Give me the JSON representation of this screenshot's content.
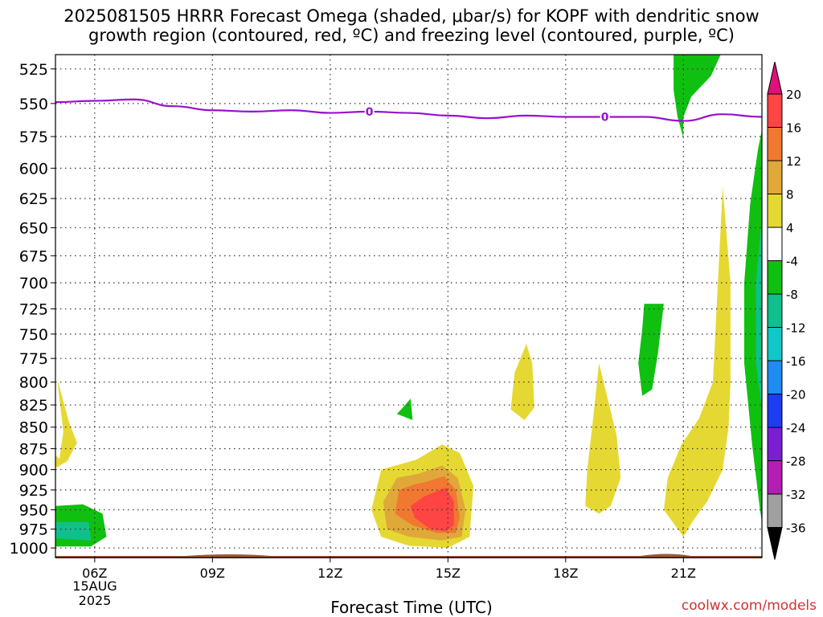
{
  "title_line1": "2025081505 HRRR Forecast Omega (shaded, μbar/s) for KOPF with dendritic snow",
  "title_line2": "growth region (contoured, red, ºC) and freezing level (contoured, purple, ºC)",
  "credit": "coolwx.com/models",
  "chart_data": {
    "type": "contour",
    "xlabel": "Forecast Time (UTC)",
    "x_ticks": [
      "06Z",
      "09Z",
      "12Z",
      "15Z",
      "18Z",
      "21Z"
    ],
    "x_hours": [
      6,
      9,
      12,
      15,
      18,
      21
    ],
    "xlim_hours": [
      5,
      23
    ],
    "date_label": [
      "15AUG",
      "2025"
    ],
    "ylabel": "",
    "y_ticks": [
      525,
      550,
      575,
      600,
      625,
      650,
      675,
      700,
      725,
      750,
      775,
      800,
      825,
      850,
      875,
      900,
      925,
      950,
      975,
      1000
    ],
    "ylim_hPa": [
      515,
      1013
    ],
    "y_scale": "log-pressure",
    "grid": true,
    "colorbar": {
      "position": "right",
      "labels": [
        "20",
        "16",
        "12",
        "8",
        "4",
        "-4",
        "-8",
        "-12",
        "-16",
        "-20",
        "-24",
        "-28",
        "-32",
        "-36"
      ],
      "colors": [
        "#ff4444",
        "#f07830",
        "#e0a838",
        "#e6d832",
        "#ffffff",
        "#10c010",
        "#10c08c",
        "#10c8c8",
        "#1e8cf0",
        "#1e3cf0",
        "#7a1ed2",
        "#b41eb4",
        "#a0a0a0"
      ],
      "top_color": "#e0107a",
      "bottom_color": "#000000"
    },
    "freezing_level": {
      "label": "0",
      "color": "#9a10d0",
      "points": [
        [
          5,
          549
        ],
        [
          6,
          548
        ],
        [
          7,
          547
        ],
        [
          8,
          552
        ],
        [
          9,
          555
        ],
        [
          10,
          556
        ],
        [
          11,
          555
        ],
        [
          12,
          557
        ],
        [
          13,
          556
        ],
        [
          14,
          557
        ],
        [
          15,
          559
        ],
        [
          16,
          561
        ],
        [
          17,
          559
        ],
        [
          18,
          560
        ],
        [
          19,
          560
        ],
        [
          20,
          560
        ],
        [
          21,
          563
        ],
        [
          22,
          558
        ],
        [
          23,
          560
        ]
      ]
    },
    "omega_regions": [
      {
        "value": 4,
        "color": "#e6d832",
        "points": [
          [
            5.1,
            887
          ],
          [
            5.2,
            855
          ],
          [
            5.1,
            818
          ],
          [
            5.05,
            797
          ],
          [
            5.35,
            845
          ],
          [
            5.55,
            868
          ],
          [
            5.3,
            890
          ],
          [
            5.0,
            898
          ],
          [
            4.95,
            880
          ]
        ]
      },
      {
        "value": -4,
        "color": "#10c010",
        "points": [
          [
            5.0,
            945
          ],
          [
            5.7,
            943
          ],
          [
            6.2,
            955
          ],
          [
            6.3,
            985
          ],
          [
            5.9,
            998
          ],
          [
            4.9,
            998
          ],
          [
            4.75,
            970
          ],
          [
            4.85,
            950
          ]
        ]
      },
      {
        "value": -8,
        "color": "#10c08c",
        "points": [
          [
            5.0,
            966
          ],
          [
            5.85,
            966
          ],
          [
            5.9,
            990
          ],
          [
            5.0,
            987
          ]
        ]
      },
      {
        "value": 4,
        "color": "#e6d832",
        "points": [
          [
            14.2,
            888
          ],
          [
            14.85,
            870
          ],
          [
            15.3,
            880
          ],
          [
            15.65,
            920
          ],
          [
            15.55,
            985
          ],
          [
            15.0,
            1000
          ],
          [
            14.0,
            997
          ],
          [
            13.3,
            985
          ],
          [
            13.05,
            950
          ],
          [
            13.3,
            900
          ]
        ]
      },
      {
        "value": 8,
        "color": "#e0a838",
        "points": [
          [
            14.25,
            905
          ],
          [
            14.85,
            895
          ],
          [
            15.25,
            910
          ],
          [
            15.45,
            950
          ],
          [
            15.35,
            985
          ],
          [
            14.85,
            990
          ],
          [
            14.0,
            985
          ],
          [
            13.45,
            975
          ],
          [
            13.35,
            940
          ],
          [
            13.7,
            910
          ]
        ]
      },
      {
        "value": 12,
        "color": "#f07830",
        "points": [
          [
            14.45,
            915
          ],
          [
            14.9,
            908
          ],
          [
            15.2,
            925
          ],
          [
            15.3,
            960
          ],
          [
            15.2,
            980
          ],
          [
            14.7,
            980
          ],
          [
            14.1,
            970
          ],
          [
            13.65,
            955
          ],
          [
            13.75,
            925
          ],
          [
            14.15,
            918
          ]
        ]
      },
      {
        "value": 16,
        "color": "#ff4444",
        "points": [
          [
            14.65,
            928
          ],
          [
            14.95,
            922
          ],
          [
            15.15,
            940
          ],
          [
            15.15,
            970
          ],
          [
            14.95,
            978
          ],
          [
            14.55,
            975
          ],
          [
            14.15,
            960
          ],
          [
            14.05,
            945
          ],
          [
            14.4,
            933
          ]
        ]
      },
      {
        "value": -4,
        "color": "#10c010",
        "points": [
          [
            13.85,
            828
          ],
          [
            14.05,
            818
          ],
          [
            14.1,
            842
          ],
          [
            13.7,
            835
          ]
        ]
      },
      {
        "value": 4,
        "color": "#e6d832",
        "points": [
          [
            17.0,
            760
          ],
          [
            17.15,
            780
          ],
          [
            17.2,
            828
          ],
          [
            16.95,
            842
          ],
          [
            16.6,
            830
          ],
          [
            16.7,
            790
          ]
        ]
      },
      {
        "value": 4,
        "color": "#e6d832",
        "points": [
          [
            18.85,
            780
          ],
          [
            19.3,
            860
          ],
          [
            19.4,
            910
          ],
          [
            19.15,
            945
          ],
          [
            18.85,
            955
          ],
          [
            18.5,
            945
          ],
          [
            18.55,
            900
          ],
          [
            18.7,
            840
          ]
        ]
      },
      {
        "value": -4,
        "color": "#10c010",
        "points": [
          [
            20.0,
            720
          ],
          [
            20.5,
            720
          ],
          [
            20.35,
            770
          ],
          [
            20.2,
            808
          ],
          [
            19.95,
            815
          ],
          [
            19.85,
            780
          ],
          [
            19.95,
            745
          ]
        ]
      },
      {
        "value": 4,
        "color": "#e6d832",
        "points": [
          [
            22.0,
            615
          ],
          [
            22.2,
            700
          ],
          [
            22.2,
            800
          ],
          [
            22.15,
            850
          ],
          [
            22.0,
            900
          ],
          [
            21.6,
            940
          ],
          [
            21.3,
            960
          ],
          [
            21.0,
            985
          ],
          [
            20.5,
            950
          ],
          [
            20.6,
            910
          ],
          [
            20.95,
            870
          ],
          [
            21.4,
            840
          ],
          [
            21.75,
            800
          ]
        ]
      },
      {
        "value": -4,
        "color": "#10c010",
        "points": [
          [
            20.75,
            515
          ],
          [
            21.95,
            515
          ],
          [
            21.7,
            530
          ],
          [
            21.2,
            545
          ],
          [
            21.0,
            560
          ],
          [
            21.0,
            576
          ],
          [
            20.85,
            560
          ],
          [
            20.75,
            540
          ]
        ]
      },
      {
        "value": -4,
        "color": "#10c010",
        "points": [
          [
            23.0,
            570
          ],
          [
            23.0,
            965
          ],
          [
            22.95,
            950
          ],
          [
            22.75,
            870
          ],
          [
            22.55,
            780
          ],
          [
            22.55,
            700
          ],
          [
            22.7,
            630
          ],
          [
            22.9,
            585
          ]
        ]
      },
      {
        "value": -8,
        "color": "#10c08c",
        "points": [
          [
            23.0,
            640
          ],
          [
            23.0,
            830
          ],
          [
            22.85,
            780
          ],
          [
            22.85,
            700
          ]
        ]
      }
    ]
  }
}
